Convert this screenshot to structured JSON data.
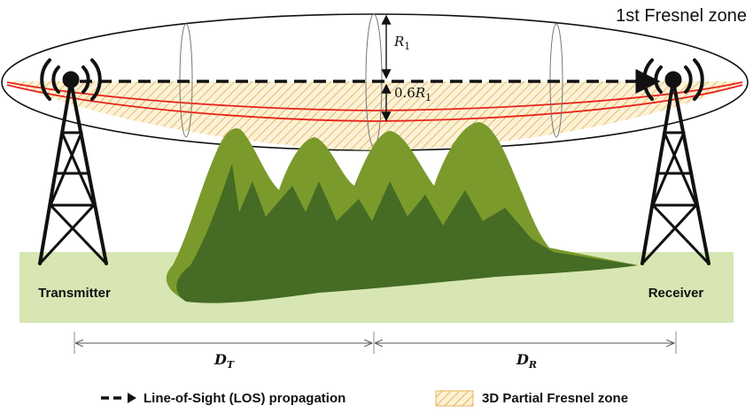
{
  "title": "1st Fresnel zone",
  "radius_label": {
    "symbol": "R",
    "sub": "1"
  },
  "clearance_label": {
    "coef": "0.6",
    "symbol": "R",
    "sub": "1"
  },
  "transmitter_label": "Transmitter",
  "receiver_label": "Receiver",
  "distance_t": {
    "symbol": "D",
    "sub": "T"
  },
  "distance_r": {
    "symbol": "D",
    "sub": "R"
  },
  "legend": {
    "los_label": "Line-of-Sight (LOS) propagation",
    "fresnel_label": "3D Partial Fresnel zone"
  },
  "colors": {
    "ground": "#d7e6b3",
    "mountain_light": "#7a9a2c",
    "mountain_dark": "#456b24",
    "fresnel_red": "#e8231b",
    "hatch_fill": "#fbf1d4",
    "hatch_line": "#e6b45a"
  }
}
